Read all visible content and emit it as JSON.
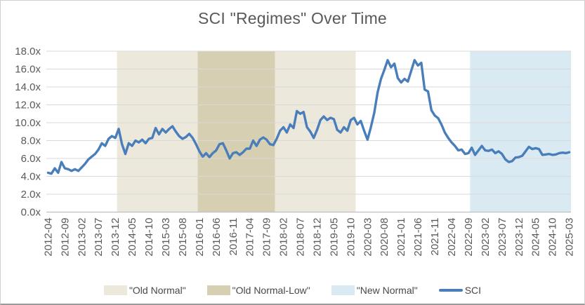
{
  "title": "SCI \"Regimes\" Over Time",
  "colors": {
    "old_normal": "#ece9dc",
    "old_normal_low": "#d6cfb1",
    "new_normal": "#daeaf2",
    "line": "#4a7ebb",
    "text": "#595959",
    "grid": "#d9d9d9",
    "axis": "#bfbfbf"
  },
  "legend": {
    "items": [
      {
        "label": "\"Old Normal\"",
        "swatch_color_key": "old_normal"
      },
      {
        "label": "\"Old Normal-Low\"",
        "swatch_color_key": "old_normal_low"
      },
      {
        "label": "\"New Normal\"",
        "swatch_color_key": "new_normal"
      },
      {
        "label": "SCI",
        "swatch_color_key": "line"
      }
    ]
  },
  "chart_data": {
    "type": "line",
    "title": "SCI \"Regimes\" Over Time",
    "series_name": "SCI",
    "x_start": "2012-04",
    "freq": "monthly",
    "ylim": [
      0,
      18
    ],
    "y_tick_labels": [
      "0.0x",
      "2.0x",
      "4.0x",
      "6.0x",
      "8.0x",
      "10.0x",
      "12.0x",
      "14.0x",
      "16.0x",
      "18.0x"
    ],
    "x_tick_labels": [
      "2012-04",
      "2012-09",
      "2013-02",
      "2013-07",
      "2013-12",
      "2014-05",
      "2014-10",
      "2015-03",
      "2015-08",
      "2016-01",
      "2016-06",
      "2016-11",
      "2017-04",
      "2017-09",
      "2018-02",
      "2018-07",
      "2018-12",
      "2019-05",
      "2019-10",
      "2020-03",
      "2020-08",
      "2021-01",
      "2021-06",
      "2021-11",
      "2022-04",
      "2022-09",
      "2023-02",
      "2023-07",
      "2023-12",
      "2024-05",
      "2024-10",
      "2025-03"
    ],
    "x_tick_step_months": 5,
    "regions": [
      {
        "label": "\"Old Normal\"",
        "start": "2014-01",
        "end": "2015-12",
        "color": "#ece9dc"
      },
      {
        "label": "\"Old Normal-Low\"",
        "start": "2016-01",
        "end": "2017-11",
        "color": "#d6cfb1"
      },
      {
        "label": "\"Old Normal\"",
        "start": "2017-12",
        "end": "2019-11",
        "color": "#ece9dc"
      },
      {
        "label": "\"New Normal\"",
        "start": "2022-10",
        "end": "2025-03",
        "color": "#daeaf2"
      }
    ],
    "values": [
      4.4,
      4.3,
      4.9,
      4.4,
      5.6,
      4.9,
      4.8,
      4.6,
      4.8,
      4.6,
      5.0,
      5.4,
      5.9,
      6.2,
      6.5,
      7.0,
      7.7,
      7.4,
      8.2,
      8.5,
      8.3,
      9.3,
      7.6,
      6.5,
      7.7,
      7.4,
      8.0,
      7.8,
      8.1,
      7.7,
      8.2,
      8.3,
      9.4,
      8.7,
      9.3,
      8.9,
      9.3,
      9.6,
      9.0,
      8.5,
      8.2,
      8.4,
      8.75,
      8.3,
      7.6,
      6.8,
      6.2,
      6.6,
      6.15,
      6.6,
      6.9,
      7.6,
      7.7,
      6.9,
      6.0,
      6.6,
      6.7,
      6.4,
      6.7,
      7.1,
      7.1,
      8.0,
      7.4,
      8.1,
      8.35,
      8.1,
      7.6,
      7.5,
      8.2,
      9.1,
      9.5,
      8.9,
      9.8,
      9.4,
      11.3,
      11.0,
      11.2,
      9.5,
      9.0,
      8.3,
      9.2,
      10.3,
      10.7,
      10.3,
      10.55,
      10.4,
      9.2,
      8.9,
      9.5,
      9.1,
      10.3,
      10.55,
      9.8,
      10.2,
      9.1,
      8.1,
      9.5,
      11.1,
      13.4,
      14.9,
      15.9,
      17.0,
      16.2,
      16.6,
      15.0,
      14.5,
      14.9,
      14.6,
      15.8,
      17.0,
      16.4,
      16.7,
      13.7,
      13.5,
      11.4,
      10.8,
      10.5,
      9.8,
      8.9,
      8.3,
      7.8,
      7.4,
      6.9,
      7.0,
      6.5,
      6.6,
      7.2,
      6.4,
      6.9,
      7.4,
      6.9,
      6.85,
      7.0,
      6.6,
      6.8,
      6.5,
      5.9,
      5.6,
      5.7,
      6.1,
      6.15,
      6.3,
      6.8,
      7.3,
      7.05,
      7.15,
      7.05,
      6.4,
      6.45,
      6.5,
      6.4,
      6.45,
      6.6,
      6.65,
      6.6,
      6.7
    ],
    "grid": true,
    "legend_position": "bottom"
  }
}
